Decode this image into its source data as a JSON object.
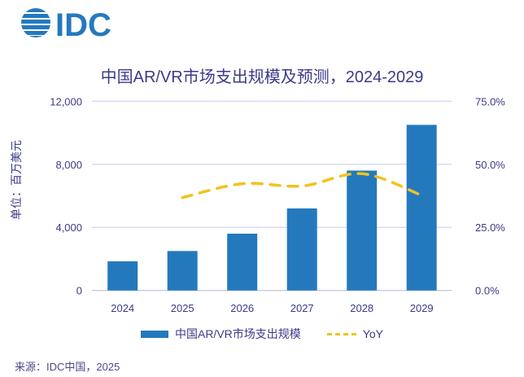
{
  "logo": {
    "text": "IDC",
    "color": "#2479bd"
  },
  "chart_data": {
    "type": "bar+line",
    "title": "中国AR/VR市场支出规模及预测，2024-2029",
    "ylabel": "单位：百万美元",
    "categories": [
      "2024",
      "2025",
      "2026",
      "2027",
      "2028",
      "2029"
    ],
    "y_left": {
      "range": [
        0,
        12000
      ],
      "ticks": [
        "0",
        "4,000",
        "8,000",
        "12,000"
      ],
      "tick_values": [
        0,
        4000,
        8000,
        12000
      ]
    },
    "y_right": {
      "range": [
        0,
        75
      ],
      "ticks": [
        "0.0%",
        "25.0%",
        "50.0%",
        "75.0%"
      ],
      "tick_values": [
        0,
        25,
        50,
        75
      ]
    },
    "series": [
      {
        "name": "中国AR/VR市场支出规模",
        "type": "bar",
        "axis": "left",
        "color": "#2479bd",
        "values": [
          1850,
          2500,
          3600,
          5200,
          7600,
          10500
        ]
      },
      {
        "name": "YoY",
        "type": "line",
        "style": "dashed",
        "axis": "right",
        "color": "#f2c31c",
        "values": [
          null,
          36.8,
          42.3,
          41.4,
          46.3,
          37.7
        ]
      }
    ],
    "grid": true,
    "legend": "bottom"
  },
  "source": "来源：IDC中国，2025"
}
